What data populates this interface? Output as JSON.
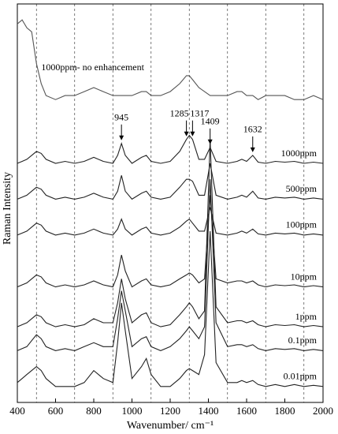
{
  "chart_data": {
    "type": "line",
    "y_label": "Raman Intensity",
    "x_label": "Wavenumber/ cm⁻¹",
    "x": [
      400,
      425,
      450,
      475,
      500,
      525,
      550,
      600,
      650,
      700,
      750,
      800,
      850,
      900,
      925,
      945,
      965,
      1000,
      1050,
      1075,
      1100,
      1150,
      1200,
      1250,
      1285,
      1300,
      1317,
      1350,
      1380,
      1409,
      1440,
      1500,
      1550,
      1575,
      1600,
      1632,
      1660,
      1700,
      1750,
      1800,
      1850,
      1900,
      1950,
      2000
    ],
    "series": [
      {
        "name": "1000ppm- no enhancement",
        "color": "#555555",
        "values": [
          95,
          96,
          94,
          93,
          85,
          80,
          77,
          76,
          77,
          77,
          78,
          79,
          78,
          77,
          77,
          77,
          77,
          77,
          78,
          78,
          77,
          77,
          78,
          80,
          82,
          82,
          81,
          79,
          78,
          77,
          77,
          77,
          78,
          78,
          77,
          77,
          76,
          77,
          77,
          77,
          76,
          76,
          77,
          76
        ]
      },
      {
        "name": "1000ppm",
        "color": "#222222",
        "values": [
          60,
          60.5,
          61,
          62,
          63,
          62.5,
          61,
          60,
          60.5,
          60,
          60.5,
          61.5,
          60.5,
          60,
          62,
          65,
          62,
          60,
          61.5,
          62,
          60.5,
          60,
          60.5,
          63,
          66,
          67,
          66,
          61,
          61,
          64,
          60.5,
          60,
          60.5,
          61,
          60.5,
          62,
          60.3,
          60,
          60.5,
          60.3,
          60.5,
          60,
          60.3,
          60
        ]
      },
      {
        "name": "500ppm",
        "color": "#222222",
        "values": [
          51,
          51.5,
          52,
          53,
          54,
          53.5,
          52,
          51,
          51.5,
          51,
          51.5,
          52.5,
          51.5,
          51,
          53,
          57,
          53,
          51,
          52.5,
          53,
          51.5,
          51,
          51.5,
          54,
          56,
          56,
          55.5,
          52,
          52,
          60,
          52,
          51,
          51.5,
          52,
          51.5,
          53,
          51.3,
          51,
          51.5,
          51.3,
          51.5,
          51,
          51.3,
          51
        ]
      },
      {
        "name": "100ppm",
        "color": "#222222",
        "values": [
          42,
          42.5,
          43,
          44,
          45,
          44.5,
          43,
          42,
          42.5,
          42,
          42.5,
          43.5,
          42.5,
          42,
          43.5,
          46,
          43.5,
          42,
          43.5,
          44,
          42.5,
          42,
          42.5,
          44,
          45.5,
          46,
          45,
          43,
          43,
          49,
          42.5,
          42,
          42.5,
          43,
          42.5,
          43.5,
          42.3,
          42,
          42.5,
          42.3,
          42.5,
          42,
          42.3,
          42
        ]
      },
      {
        "name": "10ppm",
        "color": "#222222",
        "values": [
          29,
          29.5,
          30,
          31,
          32,
          31.5,
          30,
          29,
          29.5,
          29,
          29.5,
          30.5,
          29.5,
          29,
          32,
          37,
          33,
          29,
          30.5,
          31,
          29.5,
          29,
          29.5,
          31,
          32,
          32.5,
          32,
          30,
          31,
          52,
          31,
          30,
          30.5,
          30.5,
          30,
          30.5,
          29.5,
          29,
          29.5,
          29.3,
          29.5,
          29,
          29.3,
          29
        ]
      },
      {
        "name": "1ppm",
        "color": "#222222",
        "values": [
          19,
          19.5,
          20,
          21,
          22,
          21.5,
          20,
          19,
          19.5,
          19,
          19.5,
          21,
          20,
          20,
          25,
          31,
          26,
          20,
          22,
          22.5,
          20,
          19,
          19.5,
          22,
          24,
          25,
          24,
          21,
          23,
          66,
          24,
          20,
          20.5,
          20.5,
          20,
          20.5,
          19.5,
          19,
          19.5,
          19.3,
          19.5,
          19,
          19.3,
          19
        ]
      },
      {
        "name": "0.1ppm",
        "color": "#222222",
        "values": [
          13,
          13.5,
          14,
          15.5,
          17,
          16,
          14,
          13,
          13.5,
          13,
          14,
          15,
          14,
          14,
          21,
          28,
          23,
          14,
          16,
          16.5,
          14,
          13,
          14,
          16,
          18,
          19,
          18,
          16,
          19,
          56,
          20,
          14,
          14.5,
          14.5,
          14,
          14.5,
          13.5,
          13,
          13.5,
          13.3,
          13.5,
          13,
          13.3,
          13
        ]
      },
      {
        "name": "0.01ppm",
        "color": "#222222",
        "values": [
          5,
          6,
          7,
          8,
          9,
          8,
          6,
          4,
          4,
          4,
          5,
          8,
          6,
          5,
          15,
          25,
          18,
          6,
          9,
          11,
          7,
          4,
          4,
          6,
          8,
          8.5,
          8,
          7,
          12,
          43,
          10,
          5,
          5,
          5.5,
          5,
          5.5,
          4.5,
          4,
          4.5,
          4,
          4.5,
          4,
          4.3,
          4
        ]
      }
    ],
    "annotations": [
      {
        "text": "945",
        "x": 945
      },
      {
        "text": "1285",
        "x": 1285
      },
      {
        "text": "1317",
        "x": 1317
      },
      {
        "text": "1409",
        "x": 1409
      },
      {
        "text": "1632",
        "x": 1632
      }
    ],
    "xlim": [
      400,
      2000
    ],
    "ylim": [
      0,
      100
    ],
    "xticks": [
      400,
      600,
      800,
      1000,
      1200,
      1400,
      1600,
      1800,
      2000
    ],
    "xgrid": [
      500,
      700,
      900,
      1100,
      1300,
      1500,
      1700,
      1900
    ]
  }
}
